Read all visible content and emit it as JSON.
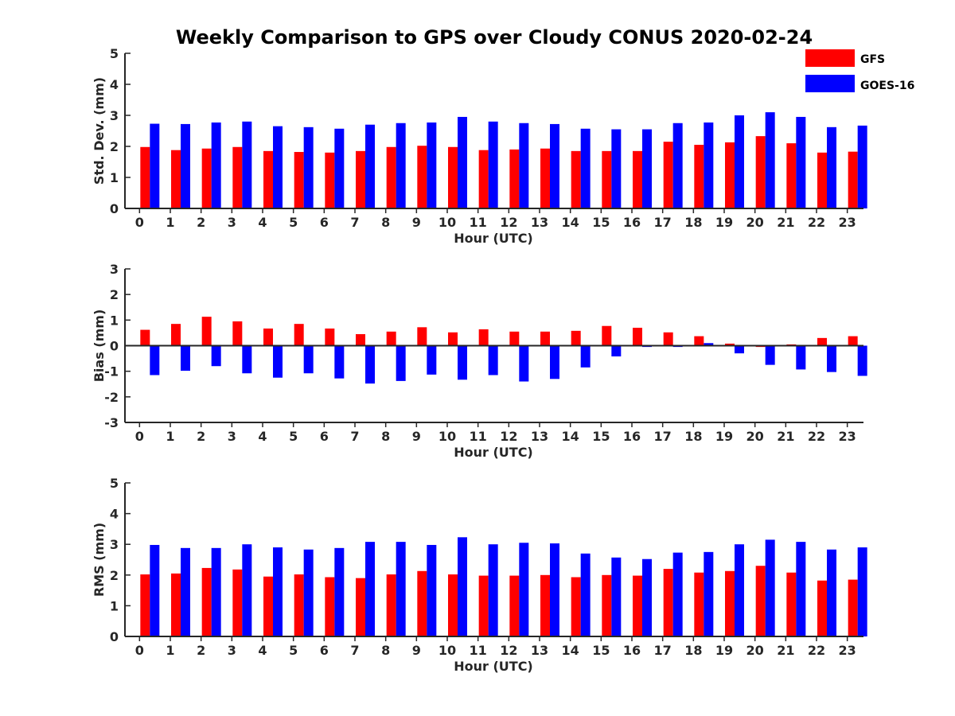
{
  "chart_data": {
    "type": "bar",
    "title": "Weekly Comparison to GPS over Cloudy CONUS 2020-02-24",
    "legend": {
      "placement": "top-right",
      "entries": [
        {
          "label": "GFS",
          "color": "#ff0000"
        },
        {
          "label": "GOES-16",
          "color": "#0000ff"
        }
      ]
    },
    "panels": [
      {
        "id": "stddev",
        "ylabel": "Std. Dev. (mm)",
        "xlabel": "Hour (UTC)",
        "ylim": [
          0,
          5
        ],
        "yticks": [
          "0",
          "1",
          "2",
          "3",
          "4",
          "5"
        ],
        "yticks_values": [
          0,
          1,
          2,
          3,
          4,
          5
        ],
        "categories": [
          "0",
          "1",
          "2",
          "3",
          "4",
          "5",
          "6",
          "7",
          "8",
          "9",
          "10",
          "11",
          "12",
          "13",
          "14",
          "15",
          "16",
          "17",
          "18",
          "19",
          "20",
          "21",
          "22",
          "23"
        ],
        "series": [
          {
            "name": "GFS",
            "color": "#ff0000",
            "values": [
              1.98,
              1.88,
              1.93,
              1.98,
              1.85,
              1.82,
              1.8,
              1.85,
              1.98,
              2.02,
              1.98,
              1.88,
              1.9,
              1.93,
              1.85,
              1.85,
              1.85,
              2.15,
              2.05,
              2.13,
              2.33,
              2.1,
              1.8,
              1.83
            ]
          },
          {
            "name": "GOES-16",
            "color": "#0000ff",
            "values": [
              2.73,
              2.72,
              2.77,
              2.8,
              2.65,
              2.62,
              2.57,
              2.7,
              2.75,
              2.77,
              2.95,
              2.8,
              2.75,
              2.72,
              2.57,
              2.55,
              2.55,
              2.75,
              2.77,
              3.0,
              3.1,
              2.95,
              2.62,
              2.67
            ]
          }
        ]
      },
      {
        "id": "bias",
        "ylabel": "Bias (mm)",
        "xlabel": "Hour (UTC)",
        "ylim": [
          -3,
          3
        ],
        "yticks": [
          "-3",
          "-2",
          "-1",
          "0",
          "1",
          "2",
          "3"
        ],
        "yticks_values": [
          -3,
          -2,
          -1,
          0,
          1,
          2,
          3
        ],
        "zero_line": true,
        "categories": [
          "0",
          "1",
          "2",
          "3",
          "4",
          "5",
          "6",
          "7",
          "8",
          "9",
          "10",
          "11",
          "12",
          "13",
          "14",
          "15",
          "16",
          "17",
          "18",
          "19",
          "20",
          "21",
          "22",
          "23"
        ],
        "series": [
          {
            "name": "GFS",
            "color": "#ff0000",
            "values": [
              0.62,
              0.85,
              1.13,
              0.95,
              0.67,
              0.85,
              0.67,
              0.45,
              0.55,
              0.72,
              0.52,
              0.64,
              0.55,
              0.55,
              0.58,
              0.77,
              0.7,
              0.52,
              0.37,
              0.08,
              -0.05,
              0.05,
              0.3,
              0.37
            ]
          },
          {
            "name": "GOES-16",
            "color": "#0000ff",
            "values": [
              -1.15,
              -0.98,
              -0.8,
              -1.08,
              -1.25,
              -1.08,
              -1.28,
              -1.48,
              -1.38,
              -1.13,
              -1.33,
              -1.15,
              -1.4,
              -1.3,
              -0.85,
              -0.42,
              -0.05,
              -0.05,
              0.1,
              -0.3,
              -0.75,
              -0.93,
              -1.03,
              -1.18
            ]
          }
        ]
      },
      {
        "id": "rms",
        "ylabel": "RMS (mm)",
        "xlabel": "Hour (UTC)",
        "ylim": [
          0,
          5
        ],
        "yticks": [
          "0",
          "1",
          "2",
          "3",
          "4",
          "5"
        ],
        "yticks_values": [
          0,
          1,
          2,
          3,
          4,
          5
        ],
        "categories": [
          "0",
          "1",
          "2",
          "3",
          "4",
          "5",
          "6",
          "7",
          "8",
          "9",
          "10",
          "11",
          "12",
          "13",
          "14",
          "15",
          "16",
          "17",
          "18",
          "19",
          "20",
          "21",
          "22",
          "23"
        ],
        "series": [
          {
            "name": "GFS",
            "color": "#ff0000",
            "values": [
              2.02,
              2.05,
              2.23,
              2.18,
              1.95,
              2.02,
              1.93,
              1.9,
              2.02,
              2.13,
              2.02,
              1.98,
              1.98,
              2.0,
              1.93,
              2.0,
              1.98,
              2.2,
              2.08,
              2.13,
              2.3,
              2.08,
              1.82,
              1.85
            ]
          },
          {
            "name": "GOES-16",
            "color": "#0000ff",
            "values": [
              2.98,
              2.88,
              2.88,
              3.0,
              2.9,
              2.83,
              2.88,
              3.08,
              3.08,
              2.98,
              3.23,
              3.0,
              3.05,
              3.03,
              2.7,
              2.57,
              2.52,
              2.73,
              2.75,
              3.0,
              3.15,
              3.08,
              2.83,
              2.9
            ]
          }
        ]
      }
    ]
  }
}
